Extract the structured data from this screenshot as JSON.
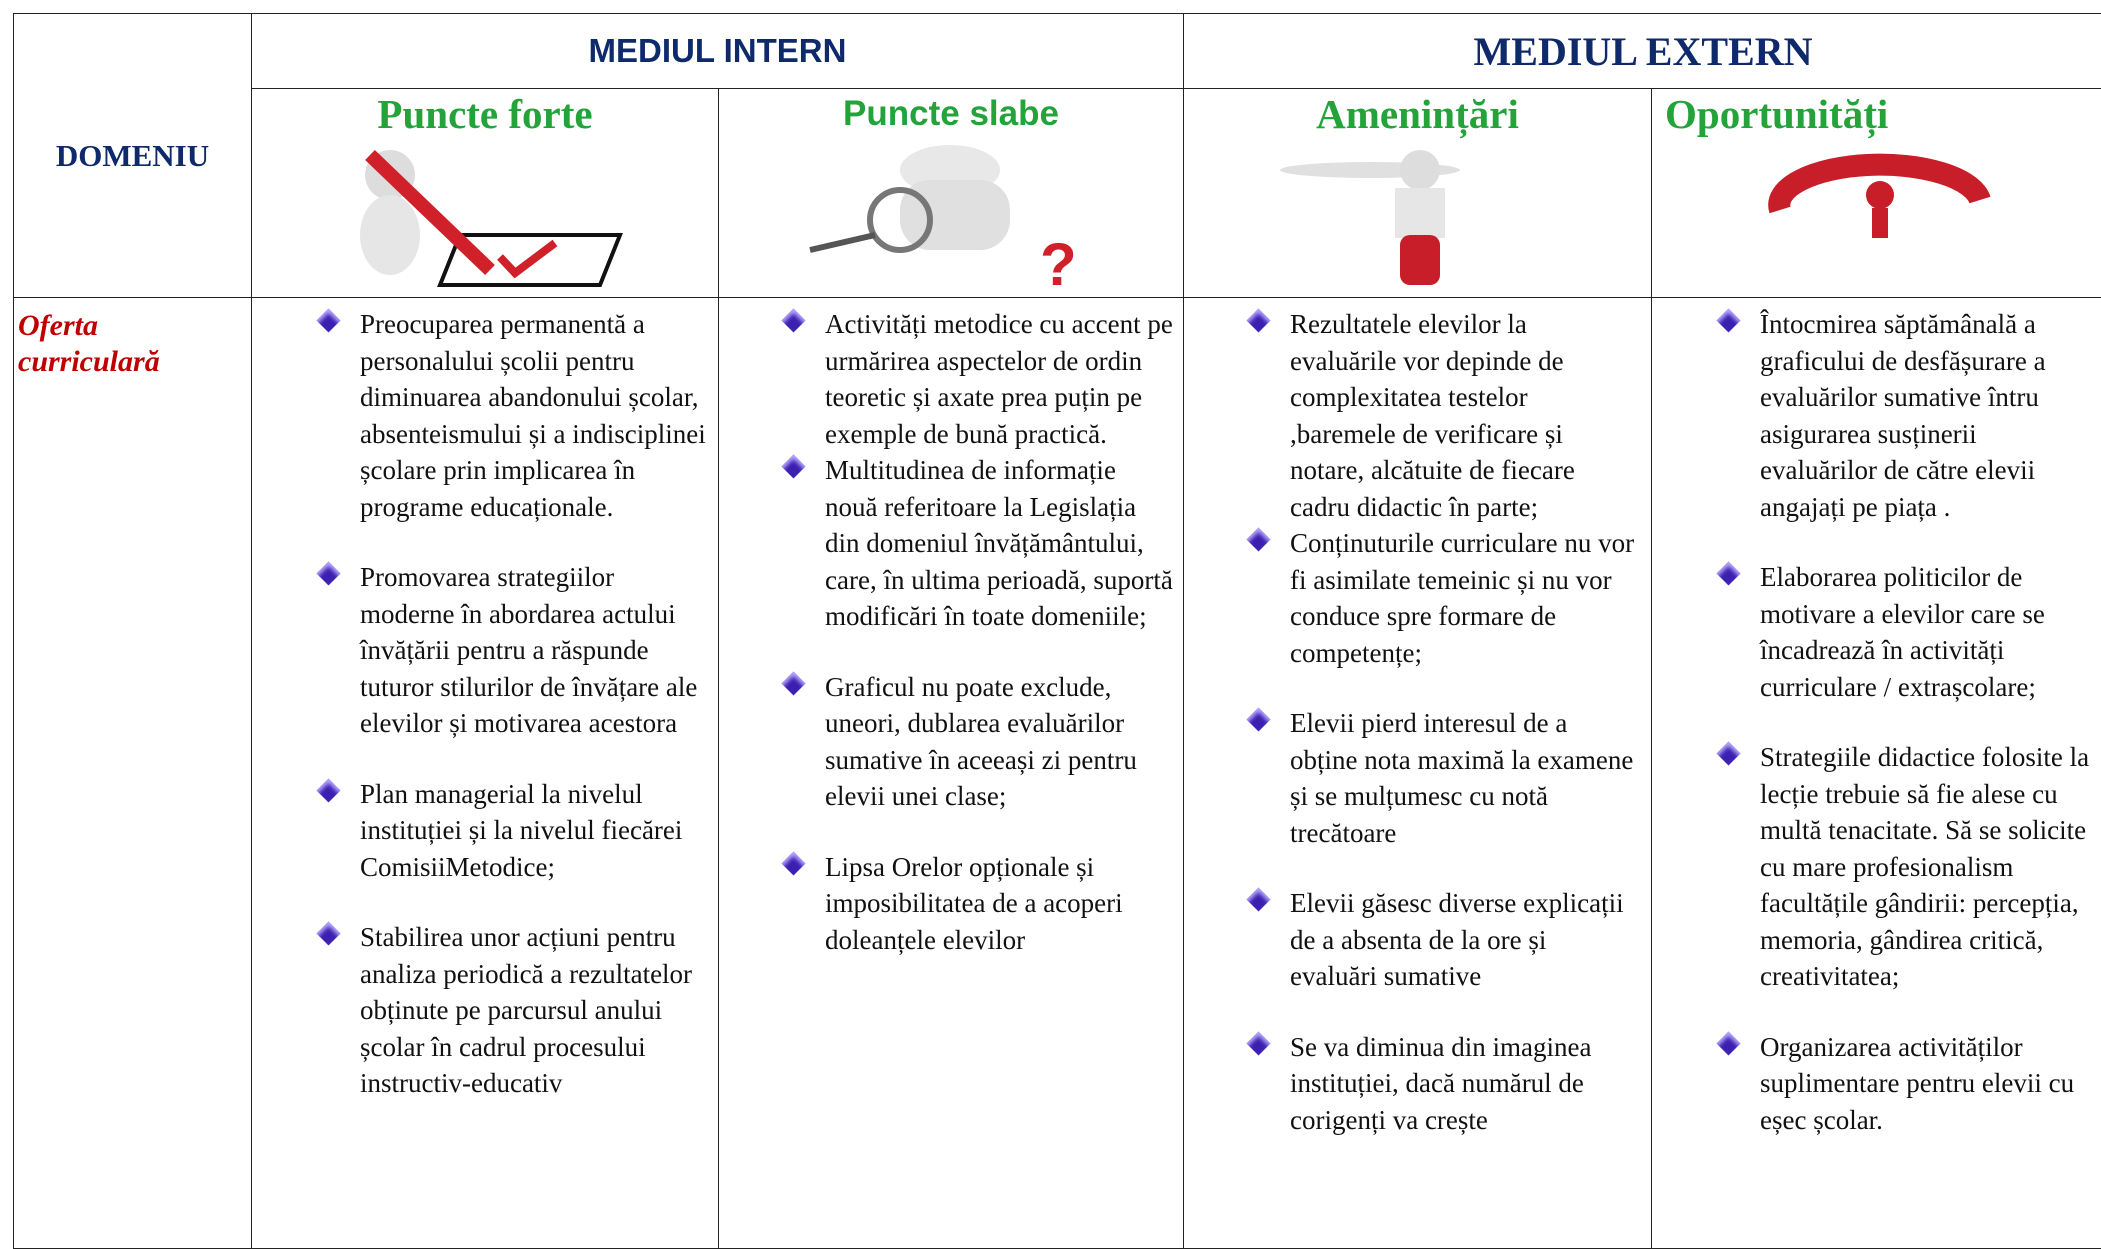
{
  "header": {
    "domain": "DOMENIU",
    "internal": "MEDIUL INTERN",
    "external": "MEDIUL EXTERN",
    "columns": [
      "Puncte forte",
      "Puncte slabe",
      "Amenințări",
      "Oportunități"
    ]
  },
  "rows": [
    {
      "domain": "Oferta curriculară",
      "cells": [
        [
          "Preocuparea permanentă a personalului școlii pentru diminuarea abandonului școlar, absenteismului și a indisciplinei școlare prin implicarea în programe educaționale.",
          "Promovarea strategiilor moderne în abordarea actului învățării pentru a răspunde tuturor stilurilor de învățare ale elevilor și motivarea acestora",
          "Plan managerial la nivelul instituției și la nivelul fiecărei ComisiiMetodice;",
          "Stabilirea unor acțiuni pentru analiza periodică a rezultatelor obținute pe parcursul anului școlar în cadrul procesului instructiv-educativ"
        ],
        [
          "Activități metodice cu accent pe urmărirea aspectelor de ordin teoretic și axate prea puțin pe exemple de bună practică.",
          "Multitudinea de informație nouă referitoare la Legislația din domeniul învățământului, care, în ultima perioadă, suportă modificări în toate domeniile;",
          "Graficul  nu poate exclude, uneori, dublarea evaluărilor sumative în aceeași zi pentru elevii unei clase;",
          "Lipsa Orelor opționale și imposibilitatea de a acoperi  doleanțele elevilor"
        ],
        [
          "Rezultatele elevilor la evaluările vor depinde de complexitatea testelor ,baremele de verificare și notare, alcătuite de fiecare cadru didactic în parte;",
          "Conținuturile curriculare nu vor fi asimilate temeinic și nu vor conduce spre formare de competențe;",
          "Elevii pierd interesul de a obține nota maximă la examene și se mulțumesc cu notă trecătoare",
          "Elevii găsesc diverse explicații de a absenta de la ore și evaluări sumative",
          "Se va diminua din imaginea instituției, dacă numărul de corigenți va crește"
        ],
        [
          "Întocmirea săptămânală a graficului de desfășurare a evaluărilor sumative întru asigurarea susținerii evaluărilor de către  elevii angajați pe piața .",
          "Elaborarea politicilor de motivare a elevilor care se încadrează în activități curriculare / extrașcolare;",
          "Strategiile didactice folosite la lecție trebuie să fie alese cu multă tenacitate. Să se solicite cu mare profesionalism facultățile gândirii: percepția, memoria, gândirea critică, creativitatea;",
          "Organizarea activităților suplimentare pentru elevii cu eșec școlar."
        ]
      ]
    }
  ]
}
